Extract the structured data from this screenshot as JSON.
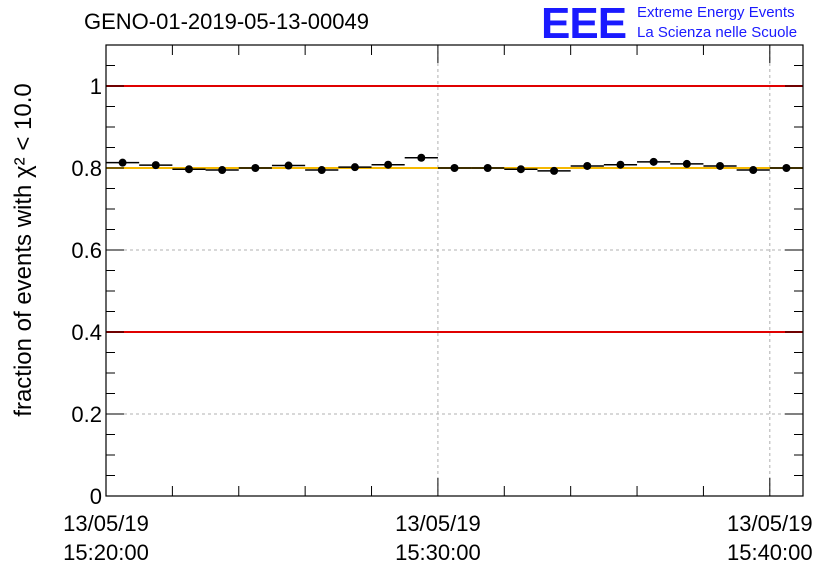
{
  "header": {
    "run_title": "GENO-01-2019-05-13-00049",
    "logo_text": "EEE",
    "logo_line1": "Extreme Energy Events",
    "logo_line2": "La Scienza nelle Scuole",
    "logo_color": "#1a1aff"
  },
  "chart_data": {
    "type": "scatter",
    "title": "GENO-01-2019-05-13-00049",
    "ylabel": "fraction of events with χ² < 10.0",
    "xlabel": "",
    "x_unit": "minutes",
    "xlim": [
      0,
      21
    ],
    "ylim": [
      0,
      1.1
    ],
    "x_ticks": [
      {
        "x": 0,
        "date": "13/05/19",
        "time": "15:20:00"
      },
      {
        "x": 10,
        "date": "13/05/19",
        "time": "15:30:00"
      },
      {
        "x": 20,
        "date": "13/05/19",
        "time": "15:40:00"
      }
    ],
    "y_ticks": [
      {
        "value": 0,
        "label": "0"
      },
      {
        "value": 0.2,
        "label": "0.2"
      },
      {
        "value": 0.4,
        "label": "0.4"
      },
      {
        "value": 0.6,
        "label": "0.6"
      },
      {
        "value": 0.8,
        "label": "0.8"
      },
      {
        "value": 1.0,
        "label": "1"
      }
    ],
    "bin_width_minutes": 1,
    "x": [
      0.5,
      1.5,
      2.5,
      3.5,
      4.5,
      5.5,
      6.5,
      7.5,
      8.5,
      9.5,
      10.5,
      11.5,
      12.5,
      13.5,
      14.5,
      15.5,
      16.5,
      17.5,
      18.5,
      19.5,
      20.5
    ],
    "values": [
      0.813,
      0.807,
      0.797,
      0.795,
      0.8,
      0.806,
      0.795,
      0.802,
      0.808,
      0.825,
      0.8,
      0.8,
      0.797,
      0.793,
      0.805,
      0.808,
      0.815,
      0.81,
      0.805,
      0.795,
      0.8
    ],
    "reference_lines": [
      {
        "y": 1.0,
        "color": "#e00000"
      },
      {
        "y": 0.4,
        "color": "#e00000"
      },
      {
        "y": 0.8,
        "color": "#f5b800"
      }
    ],
    "grid": true,
    "marker_color": "#000000"
  }
}
